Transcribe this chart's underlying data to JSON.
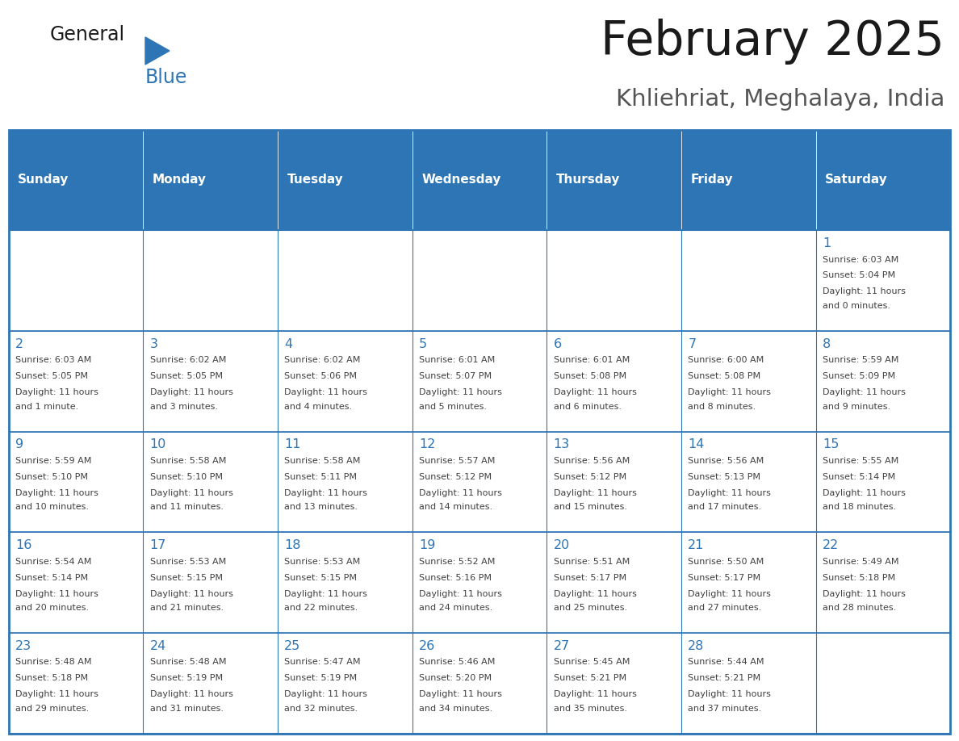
{
  "title": "February 2025",
  "subtitle": "Khliehriat, Meghalaya, India",
  "header_bg_color": "#2E75B6",
  "header_text_color": "#FFFFFF",
  "cell_bg_color": "#FFFFFF",
  "cell_alt_bg_color": "#F2F2F2",
  "border_color": "#2E75B6",
  "day_number_color": "#2E75B6",
  "cell_text_color": "#404040",
  "days_of_week": [
    "Sunday",
    "Monday",
    "Tuesday",
    "Wednesday",
    "Thursday",
    "Friday",
    "Saturday"
  ],
  "title_color": "#1a1a1a",
  "subtitle_color": "#555555",
  "logo_black": "#1a1a1a",
  "logo_blue": "#2E75B6",
  "calendar_data": [
    [
      null,
      null,
      null,
      null,
      null,
      null,
      {
        "day": 1,
        "sunrise": "6:03 AM",
        "sunset": "5:04 PM",
        "daylight": "11 hours and 0 minutes."
      }
    ],
    [
      {
        "day": 2,
        "sunrise": "6:03 AM",
        "sunset": "5:05 PM",
        "daylight": "11 hours and 1 minute."
      },
      {
        "day": 3,
        "sunrise": "6:02 AM",
        "sunset": "5:05 PM",
        "daylight": "11 hours and 3 minutes."
      },
      {
        "day": 4,
        "sunrise": "6:02 AM",
        "sunset": "5:06 PM",
        "daylight": "11 hours and 4 minutes."
      },
      {
        "day": 5,
        "sunrise": "6:01 AM",
        "sunset": "5:07 PM",
        "daylight": "11 hours and 5 minutes."
      },
      {
        "day": 6,
        "sunrise": "6:01 AM",
        "sunset": "5:08 PM",
        "daylight": "11 hours and 6 minutes."
      },
      {
        "day": 7,
        "sunrise": "6:00 AM",
        "sunset": "5:08 PM",
        "daylight": "11 hours and 8 minutes."
      },
      {
        "day": 8,
        "sunrise": "5:59 AM",
        "sunset": "5:09 PM",
        "daylight": "11 hours and 9 minutes."
      }
    ],
    [
      {
        "day": 9,
        "sunrise": "5:59 AM",
        "sunset": "5:10 PM",
        "daylight": "11 hours and 10 minutes."
      },
      {
        "day": 10,
        "sunrise": "5:58 AM",
        "sunset": "5:10 PM",
        "daylight": "11 hours and 11 minutes."
      },
      {
        "day": 11,
        "sunrise": "5:58 AM",
        "sunset": "5:11 PM",
        "daylight": "11 hours and 13 minutes."
      },
      {
        "day": 12,
        "sunrise": "5:57 AM",
        "sunset": "5:12 PM",
        "daylight": "11 hours and 14 minutes."
      },
      {
        "day": 13,
        "sunrise": "5:56 AM",
        "sunset": "5:12 PM",
        "daylight": "11 hours and 15 minutes."
      },
      {
        "day": 14,
        "sunrise": "5:56 AM",
        "sunset": "5:13 PM",
        "daylight": "11 hours and 17 minutes."
      },
      {
        "day": 15,
        "sunrise": "5:55 AM",
        "sunset": "5:14 PM",
        "daylight": "11 hours and 18 minutes."
      }
    ],
    [
      {
        "day": 16,
        "sunrise": "5:54 AM",
        "sunset": "5:14 PM",
        "daylight": "11 hours and 20 minutes."
      },
      {
        "day": 17,
        "sunrise": "5:53 AM",
        "sunset": "5:15 PM",
        "daylight": "11 hours and 21 minutes."
      },
      {
        "day": 18,
        "sunrise": "5:53 AM",
        "sunset": "5:15 PM",
        "daylight": "11 hours and 22 minutes."
      },
      {
        "day": 19,
        "sunrise": "5:52 AM",
        "sunset": "5:16 PM",
        "daylight": "11 hours and 24 minutes."
      },
      {
        "day": 20,
        "sunrise": "5:51 AM",
        "sunset": "5:17 PM",
        "daylight": "11 hours and 25 minutes."
      },
      {
        "day": 21,
        "sunrise": "5:50 AM",
        "sunset": "5:17 PM",
        "daylight": "11 hours and 27 minutes."
      },
      {
        "day": 22,
        "sunrise": "5:49 AM",
        "sunset": "5:18 PM",
        "daylight": "11 hours and 28 minutes."
      }
    ],
    [
      {
        "day": 23,
        "sunrise": "5:48 AM",
        "sunset": "5:18 PM",
        "daylight": "11 hours and 29 minutes."
      },
      {
        "day": 24,
        "sunrise": "5:48 AM",
        "sunset": "5:19 PM",
        "daylight": "11 hours and 31 minutes."
      },
      {
        "day": 25,
        "sunrise": "5:47 AM",
        "sunset": "5:19 PM",
        "daylight": "11 hours and 32 minutes."
      },
      {
        "day": 26,
        "sunrise": "5:46 AM",
        "sunset": "5:20 PM",
        "daylight": "11 hours and 34 minutes."
      },
      {
        "day": 27,
        "sunrise": "5:45 AM",
        "sunset": "5:21 PM",
        "daylight": "11 hours and 35 minutes."
      },
      {
        "day": 28,
        "sunrise": "5:44 AM",
        "sunset": "5:21 PM",
        "daylight": "11 hours and 37 minutes."
      },
      null
    ]
  ]
}
